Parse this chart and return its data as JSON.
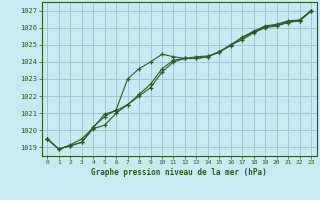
{
  "title": "Graphe pression niveau de la mer (hPa)",
  "bg_color": "#c8eaf0",
  "grid_color": "#9ec8d4",
  "line_color": "#2d5a2d",
  "xlim": [
    -0.5,
    23.5
  ],
  "ylim": [
    1018.5,
    1027.5
  ],
  "yticks": [
    1019,
    1020,
    1021,
    1022,
    1023,
    1024,
    1025,
    1026,
    1027
  ],
  "xticks": [
    0,
    1,
    2,
    3,
    4,
    5,
    6,
    7,
    8,
    9,
    10,
    11,
    12,
    13,
    14,
    15,
    16,
    17,
    18,
    19,
    20,
    21,
    22,
    23
  ],
  "series": [
    {
      "x": [
        0,
        1,
        2,
        3,
        4,
        5,
        6,
        7,
        8,
        9,
        10,
        11,
        12,
        13,
        14,
        15,
        16,
        17,
        18,
        19,
        20,
        21,
        22,
        23
      ],
      "y": [
        1019.5,
        1018.9,
        1019.1,
        1019.3,
        1020.2,
        1020.8,
        1021.2,
        1023.0,
        1023.6,
        1024.0,
        1024.45,
        1024.3,
        1024.2,
        1024.3,
        1024.35,
        1024.55,
        1025.0,
        1025.3,
        1025.7,
        1026.0,
        1026.1,
        1026.3,
        1026.4,
        1027.0
      ]
    },
    {
      "x": [
        0,
        1,
        2,
        3,
        4,
        5,
        6,
        7,
        8,
        9,
        10,
        11,
        12,
        13,
        14,
        15,
        16,
        17,
        18,
        19,
        20,
        21,
        22,
        23
      ],
      "y": [
        1019.5,
        1018.9,
        1019.1,
        1019.3,
        1020.1,
        1020.3,
        1021.0,
        1021.5,
        1022.1,
        1022.7,
        1023.6,
        1024.1,
        1024.2,
        1024.2,
        1024.3,
        1024.6,
        1025.0,
        1025.45,
        1025.8,
        1026.1,
        1026.2,
        1026.4,
        1026.45,
        1027.0
      ]
    },
    {
      "x": [
        0,
        1,
        2,
        3,
        4,
        5,
        6,
        7,
        8,
        9,
        10,
        11,
        12,
        13,
        14,
        15,
        16,
        17,
        18,
        19,
        20,
        21,
        22,
        23
      ],
      "y": [
        1019.5,
        1018.9,
        1019.15,
        1019.5,
        1020.15,
        1020.95,
        1021.15,
        1021.5,
        1022.0,
        1022.5,
        1023.4,
        1024.0,
        1024.2,
        1024.2,
        1024.3,
        1024.6,
        1024.95,
        1025.4,
        1025.75,
        1026.05,
        1026.15,
        1026.35,
        1026.4,
        1026.95
      ]
    }
  ]
}
